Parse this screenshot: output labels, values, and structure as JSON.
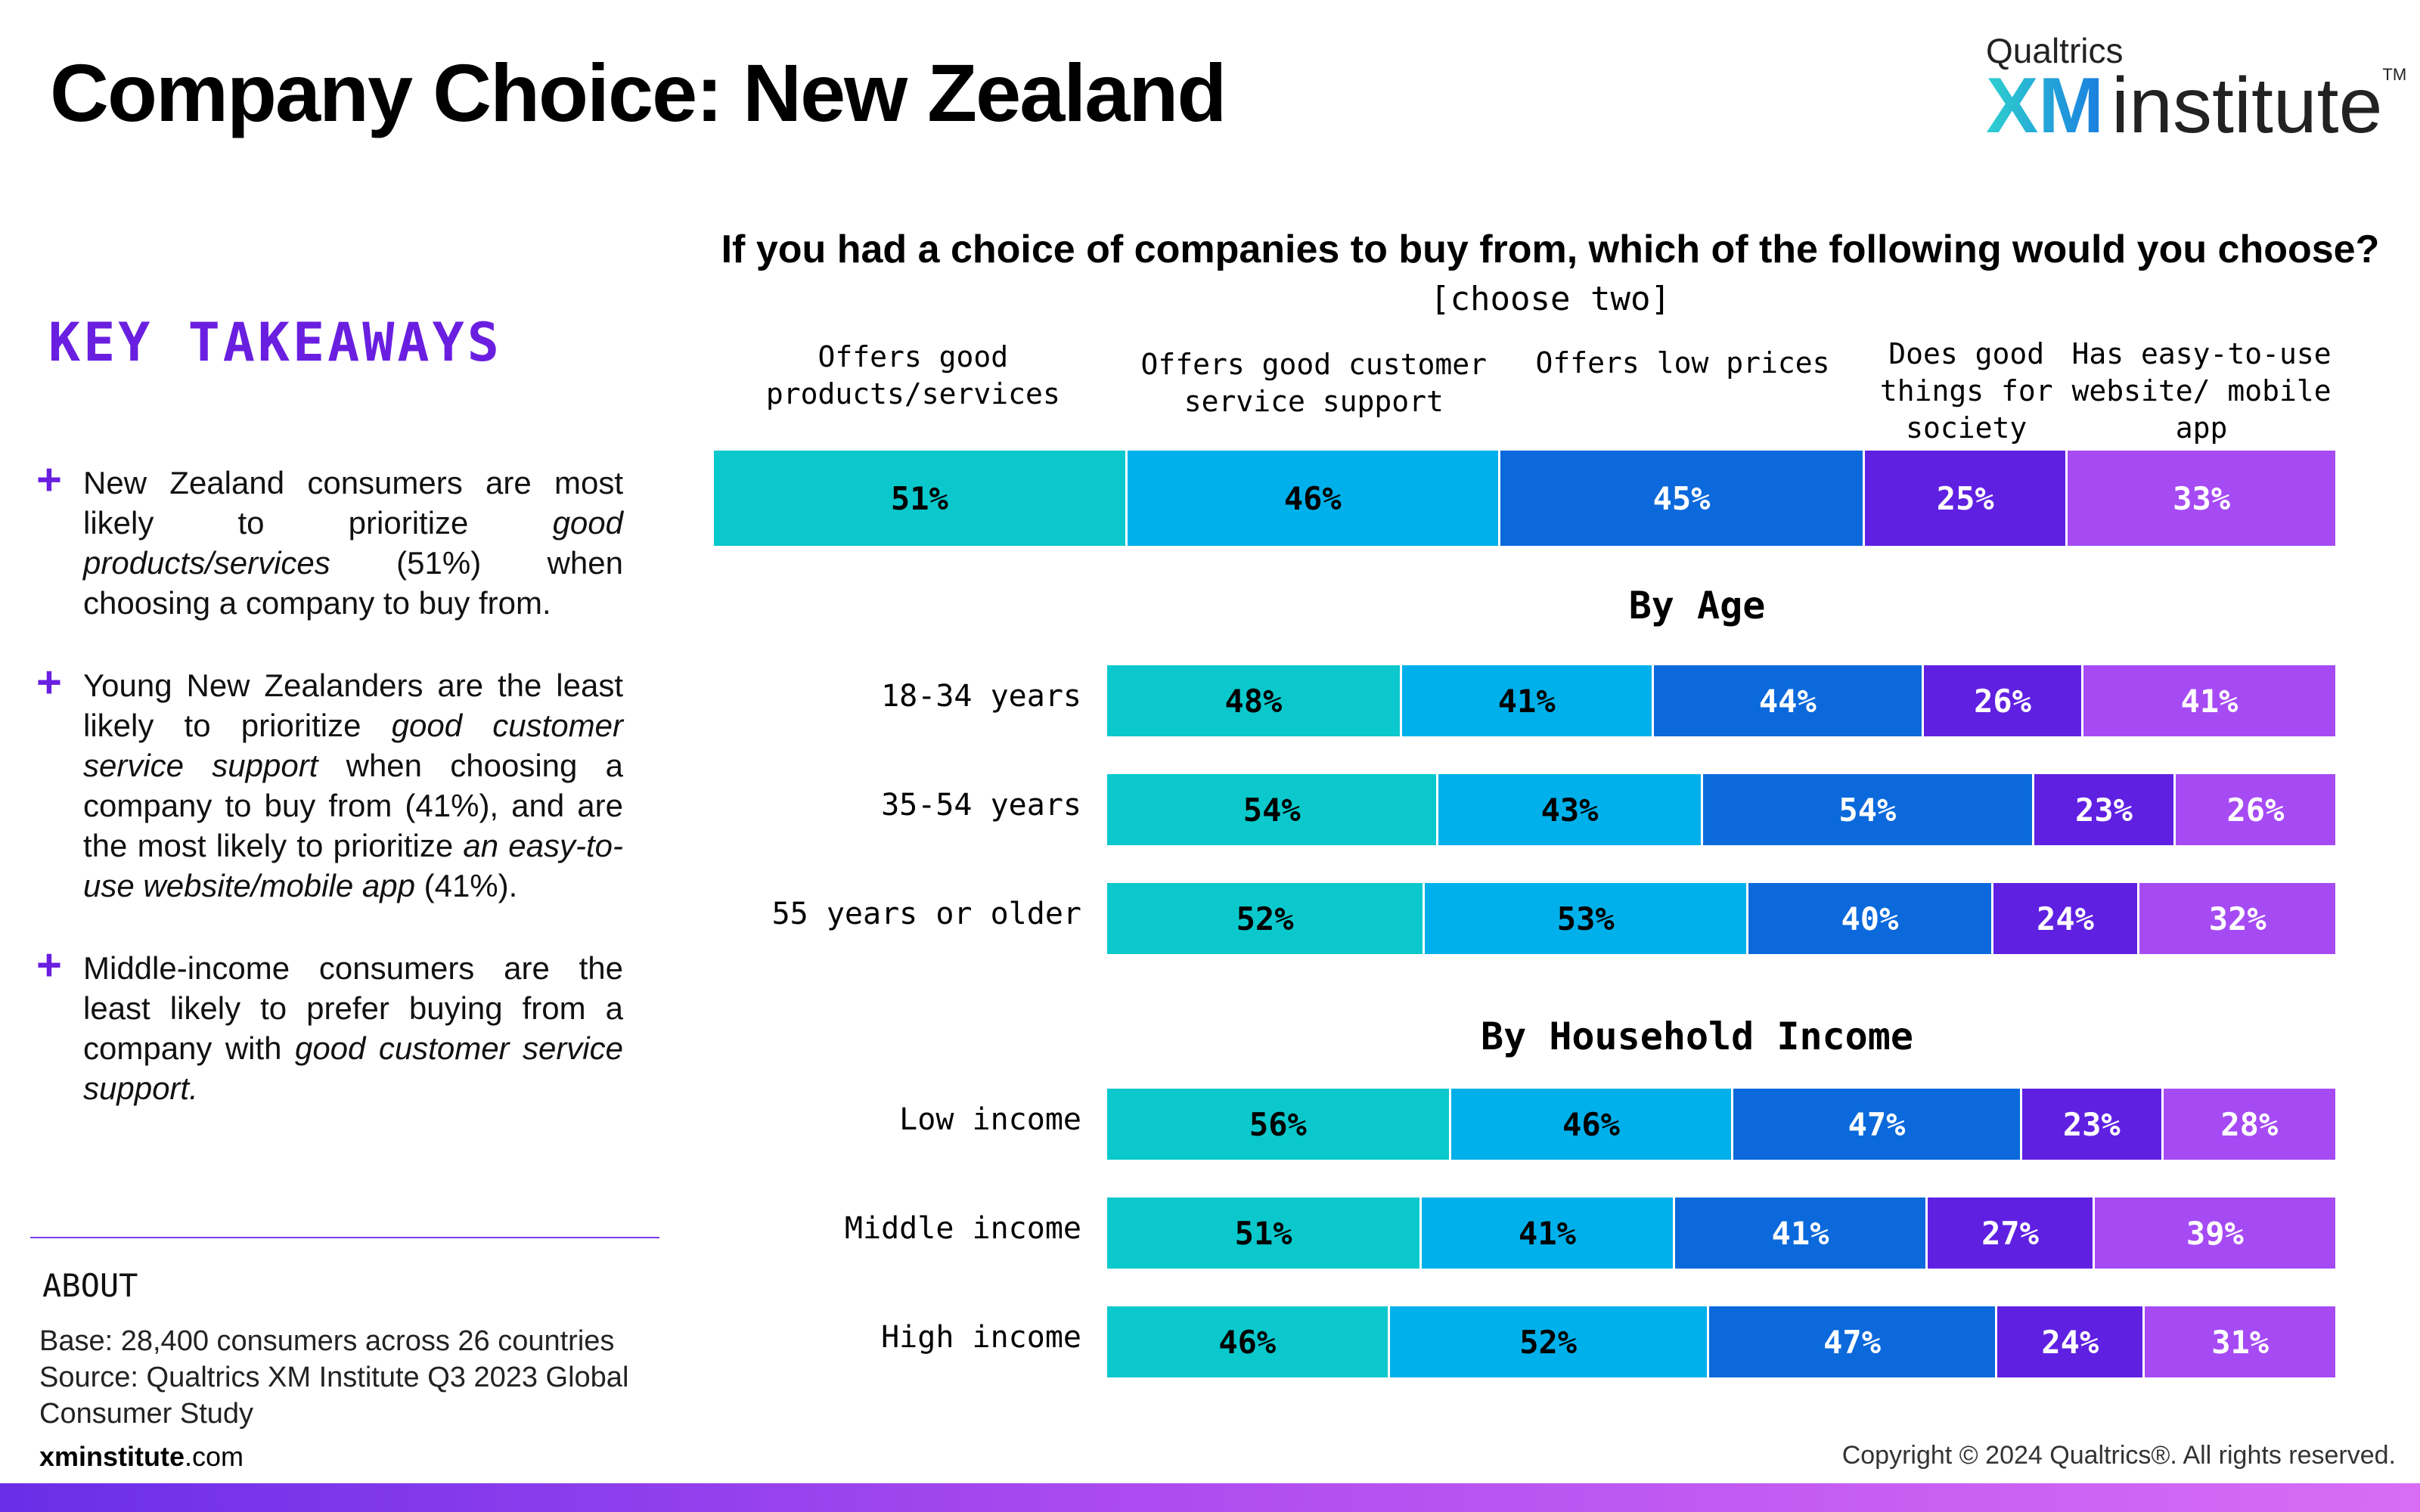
{
  "title": "Company Choice: New Zealand",
  "logo": {
    "top": "Qualtrics",
    "xm": "XM",
    "rest": "institute",
    "tm": "TM"
  },
  "takeaways": {
    "heading": "KEY TAKEAWAYS",
    "items": [
      {
        "a": "New Zealand consumers are most likely to prioritize ",
        "b": "good products/services",
        "c": " (51%) when choosing a company to buy from."
      },
      {
        "a": "Young New Zealanders are the least likely to prioritize ",
        "b": "good customer service support",
        "c": " when choosing a company to buy from (41%), and are the most likely to prioritize ",
        "d": "an easy-to-use website/mobile app",
        "e": " (41%)."
      },
      {
        "a": "Middle-income consumers are the least likely to prefer buying from a company with ",
        "b": "good customer service support."
      }
    ]
  },
  "about": {
    "heading": "ABOUT",
    "base_label": "Base:",
    "base_text": " 28,400 consumers across 26 countries",
    "source_label": "Source:",
    "source_text": " Qualtrics XM Institute Q3 2023 Global Consumer Study"
  },
  "footer": {
    "site_bold": "xminstitute",
    "site_rest": ".com",
    "copyright": "Copyright © 2024 Qualtrics®. All rights reserved."
  },
  "colors": [
    "#0bc8cc",
    "#00b0ea",
    "#0b69dc",
    "#6020e2",
    "#a64bf4"
  ],
  "text_colors": [
    "#000000",
    "#000000",
    "#ffffff",
    "#ffffff",
    "#ffffff"
  ],
  "chart_data": {
    "type": "bar",
    "stacked": true,
    "orientation": "horizontal",
    "title": "If you had a choice of companies to buy from, which of the following would you choose?",
    "subtitle": "[choose two]",
    "categories": [
      "Offers good products/services",
      "Offers good customer service support",
      "Offers low prices",
      "Does good things for society",
      "Has easy-to-use website/ mobile app"
    ],
    "overall": {
      "values": [
        51,
        46,
        45,
        25,
        33
      ]
    },
    "sections": [
      {
        "name": "By Age",
        "rows": [
          {
            "label": "18-34 years",
            "values": [
              48,
              41,
              44,
              26,
              41
            ]
          },
          {
            "label": "35-54 years",
            "values": [
              54,
              43,
              54,
              23,
              26
            ]
          },
          {
            "label": "55 years or older",
            "values": [
              52,
              53,
              40,
              24,
              32
            ]
          }
        ]
      },
      {
        "name": "By Household Income",
        "rows": [
          {
            "label": "Low income",
            "values": [
              56,
              46,
              47,
              23,
              28
            ]
          },
          {
            "label": "Middle income",
            "values": [
              51,
              41,
              41,
              27,
              39
            ]
          },
          {
            "label": "High income",
            "values": [
              46,
              52,
              47,
              24,
              31
            ]
          }
        ]
      }
    ],
    "value_suffix": "%",
    "grid": false,
    "legend": "none"
  }
}
